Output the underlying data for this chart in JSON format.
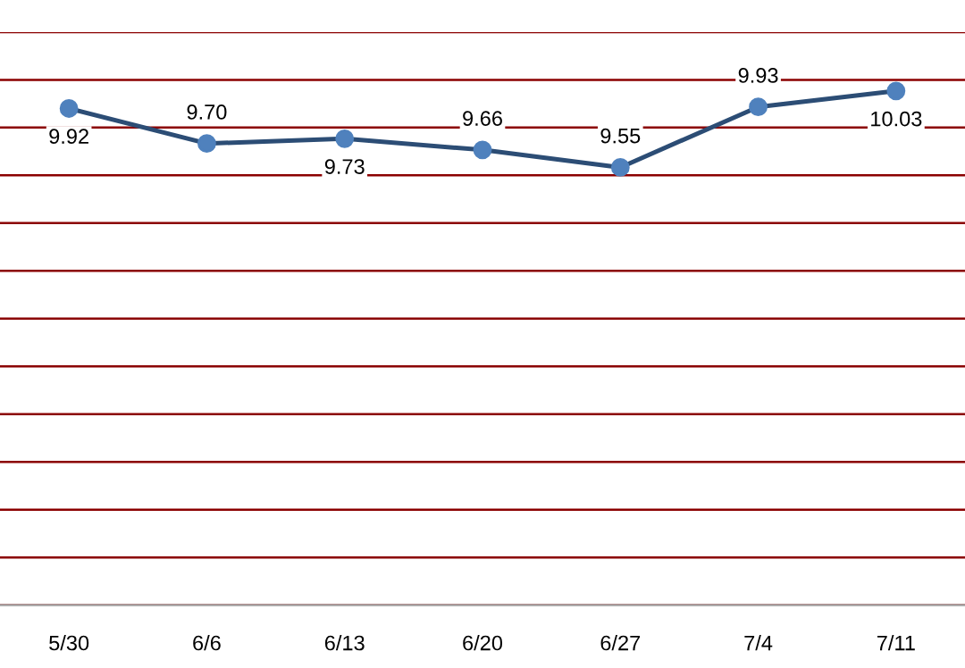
{
  "chart_data": {
    "type": "line",
    "categories": [
      "5/30",
      "6/6",
      "6/13",
      "6/20",
      "6/27",
      "7/4",
      "7/11"
    ],
    "series": [
      {
        "color": "#2c4d75",
        "values": [
          9.92,
          9.7,
          9.73,
          9.66,
          9.55,
          9.93,
          10.03
        ],
        "value_labels": [
          "9.92",
          "9.70",
          "9.73",
          "9.66",
          "9.55",
          "9.93",
          "10.03"
        ]
      }
    ],
    "marker": "circle",
    "grid": "y",
    "tick_labels": "x",
    "ylim": [
      6.8,
      10.4
    ],
    "yticks": [
      {
        "value": 6.8,
        "label": null
      },
      {
        "value": 7.1,
        "label": null
      },
      {
        "value": 7.4,
        "label": null
      },
      {
        "value": 7.7,
        "label": null
      },
      {
        "value": 8.0,
        "label": null
      },
      {
        "value": 8.3,
        "label": null
      },
      {
        "value": 8.6,
        "label": null
      },
      {
        "value": 8.9,
        "label": null
      },
      {
        "value": 9.2,
        "label": null
      },
      {
        "value": 9.5,
        "label": null
      },
      {
        "value": 9.8,
        "label": null
      },
      {
        "value": 10.1,
        "label": null
      },
      {
        "value": 10.4,
        "label": null
      }
    ]
  }
}
